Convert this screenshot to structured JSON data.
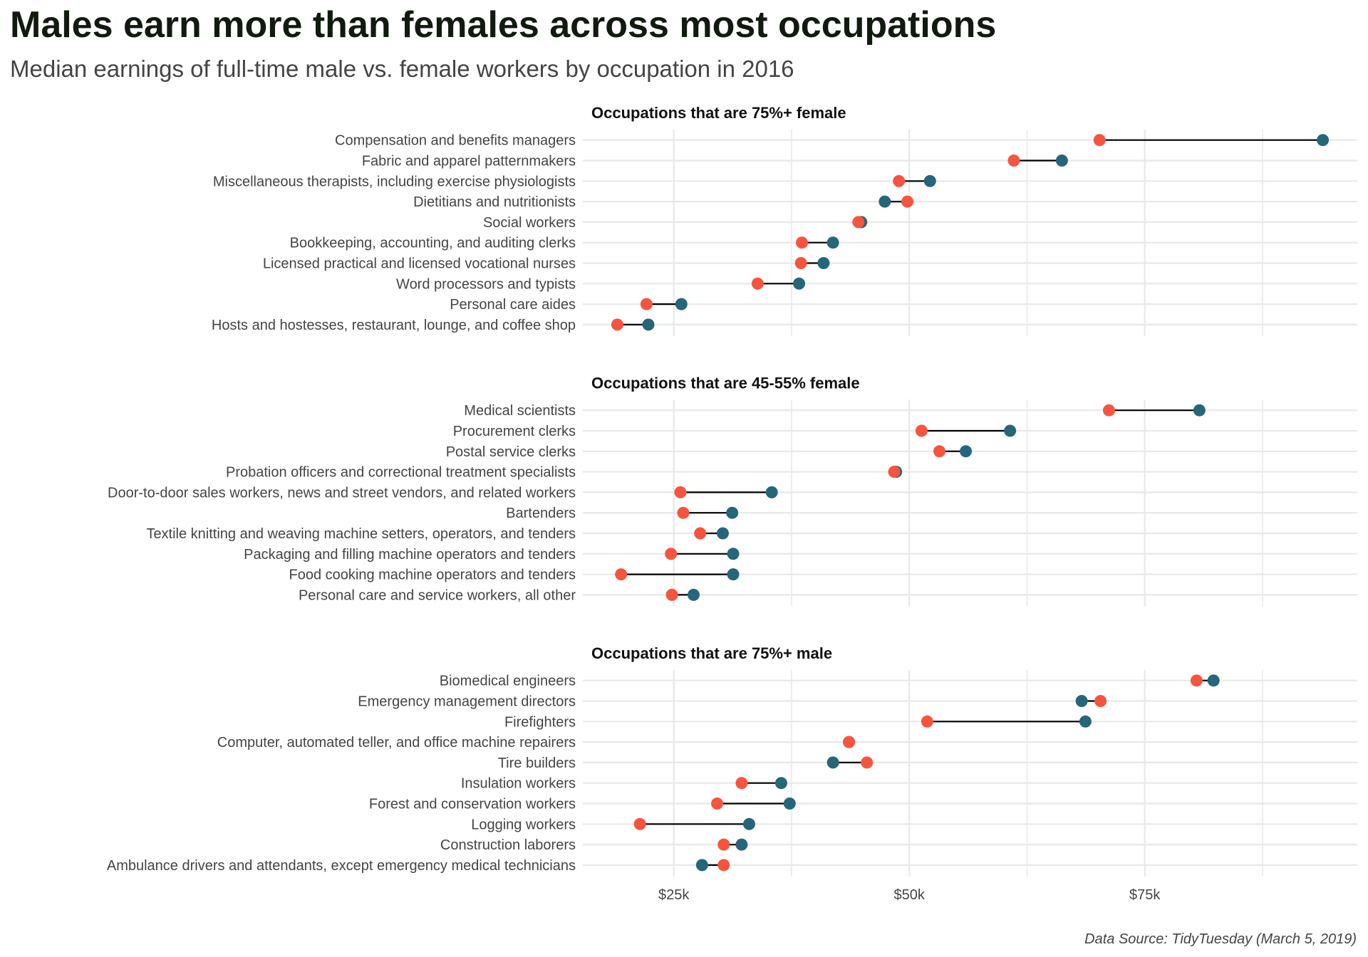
{
  "chart_data": {
    "type": "dumbbell",
    "title": "Males earn more than females across most occupations",
    "subtitle": "Median earnings of full-time male vs. female workers by occupation in 2016",
    "caption": "Data Source: TidyTuesday (March 5, 2019)",
    "xlabel": "",
    "ylabel": "",
    "x_unit": "thousands USD",
    "xlim": [
      17.5,
      97.5
    ],
    "x_ticks": [
      25,
      50,
      75
    ],
    "x_tick_labels": [
      "$25k",
      "$50k",
      "$75k"
    ],
    "minor_gridlines": [
      37.5,
      62.5,
      87.5
    ],
    "grid": true,
    "legend": "none",
    "colors": {
      "female": "#f5553f",
      "male": "#25667a",
      "segment": "#000000",
      "grid": "#e8e8e8"
    },
    "panels": [
      {
        "title": "Occupations that are 75%+ female",
        "rows": [
          {
            "occupation": "Compensation and benefits managers",
            "female": 70.2,
            "male": 93.9
          },
          {
            "occupation": "Fabric and apparel patternmakers",
            "female": 61.1,
            "male": 66.2
          },
          {
            "occupation": "Miscellaneous therapists, including exercise physiologists",
            "female": 48.9,
            "male": 52.2
          },
          {
            "occupation": "Dietitians and nutritionists",
            "female": 49.8,
            "male": 47.4
          },
          {
            "occupation": "Social workers",
            "female": 44.6,
            "male": 44.9
          },
          {
            "occupation": "Bookkeeping, accounting, and auditing clerks",
            "female": 38.6,
            "male": 41.9
          },
          {
            "occupation": "Licensed practical and licensed vocational nurses",
            "female": 38.5,
            "male": 40.9
          },
          {
            "occupation": "Word processors and typists",
            "female": 33.9,
            "male": 38.3
          },
          {
            "occupation": "Personal care aides",
            "female": 22.1,
            "male": 25.8
          },
          {
            "occupation": "Hosts and hostesses, restaurant, lounge, and coffee shop",
            "female": 19.0,
            "male": 22.3
          }
        ]
      },
      {
        "title": "Occupations that are 45-55% female",
        "rows": [
          {
            "occupation": "Medical scientists",
            "female": 71.2,
            "male": 80.8
          },
          {
            "occupation": "Procurement clerks",
            "female": 51.3,
            "male": 60.7
          },
          {
            "occupation": "Postal service clerks",
            "female": 53.2,
            "male": 56.0
          },
          {
            "occupation": "Probation officers and correctional treatment specialists",
            "female": 48.4,
            "male": 48.6
          },
          {
            "occupation": "Door-to-door sales workers, news and street vendors, and related workers",
            "female": 25.7,
            "male": 35.4
          },
          {
            "occupation": "Bartenders",
            "female": 26.0,
            "male": 31.2
          },
          {
            "occupation": "Textile knitting and weaving machine setters, operators, and tenders",
            "female": 27.8,
            "male": 30.2
          },
          {
            "occupation": "Packaging and filling machine operators and tenders",
            "female": 24.7,
            "male": 31.3
          },
          {
            "occupation": "Food cooking machine operators and tenders",
            "female": 19.4,
            "male": 31.3
          },
          {
            "occupation": "Personal care and service workers, all other",
            "female": 24.8,
            "male": 27.1
          }
        ]
      },
      {
        "title": "Occupations that are 75%+ male",
        "rows": [
          {
            "occupation": "Biomedical engineers",
            "female": 80.5,
            "male": 82.3
          },
          {
            "occupation": "Emergency management directors",
            "female": 70.3,
            "male": 68.3
          },
          {
            "occupation": "Firefighters",
            "female": 51.9,
            "male": 68.7
          },
          {
            "occupation": "Computer, automated teller, and office machine repairers",
            "female": 43.6,
            "male": 43.6
          },
          {
            "occupation": "Tire builders",
            "female": 45.5,
            "male": 41.9
          },
          {
            "occupation": "Insulation workers",
            "female": 32.2,
            "male": 36.4
          },
          {
            "occupation": "Forest and conservation workers",
            "female": 29.6,
            "male": 37.3
          },
          {
            "occupation": "Logging workers",
            "female": 21.4,
            "male": 33.0
          },
          {
            "occupation": "Construction laborers",
            "female": 30.3,
            "male": 32.2
          },
          {
            "occupation": "Ambulance drivers and attendants, except emergency medical technicians",
            "female": 30.3,
            "male": 28.0
          }
        ]
      }
    ]
  }
}
